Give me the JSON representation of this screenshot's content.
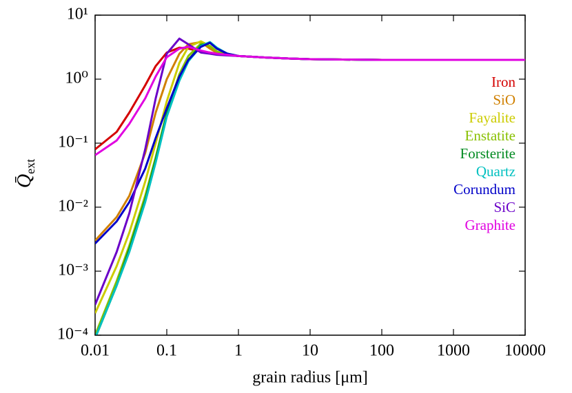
{
  "chart_data": {
    "type": "line",
    "xlabel": "grain radius [μm]",
    "ylabel": "Q̄",
    "ylabel_sub": "ext",
    "xscale": "log",
    "yscale": "log",
    "xlim": [
      0.01,
      10000
    ],
    "ylim": [
      0.0001,
      10
    ],
    "xticks": [
      0.01,
      0.1,
      1,
      10,
      100,
      1000,
      10000
    ],
    "yticks": [
      {
        "value": 0.0001,
        "label": "10⁻⁴"
      },
      {
        "value": 0.001,
        "label": "10⁻³"
      },
      {
        "value": 0.01,
        "label": "10⁻²"
      },
      {
        "value": 0.1,
        "label": "10⁻¹"
      },
      {
        "value": 1,
        "label": "10⁰"
      },
      {
        "value": 10,
        "label": "10¹"
      }
    ],
    "legend": "upper right",
    "x": [
      0.01,
      0.02,
      0.03,
      0.05,
      0.07,
      0.1,
      0.15,
      0.2,
      0.3,
      0.4,
      0.5,
      0.7,
      1,
      2,
      5,
      10,
      100,
      1000,
      10000
    ],
    "series": [
      {
        "name": "Iron",
        "color": "#d40000",
        "values": [
          0.08,
          0.15,
          0.3,
          0.8,
          1.6,
          2.6,
          3.1,
          3.0,
          2.7,
          2.6,
          2.5,
          2.4,
          2.3,
          2.2,
          2.1,
          2.05,
          2.0,
          2.0,
          2.0
        ]
      },
      {
        "name": "SiO",
        "color": "#d08000",
        "values": [
          0.003,
          0.007,
          0.015,
          0.07,
          0.3,
          1.0,
          2.5,
          3.5,
          3.8,
          3.0,
          2.6,
          2.4,
          2.3,
          2.2,
          2.1,
          2.05,
          2.0,
          2.0,
          2.0
        ]
      },
      {
        "name": "Fayalite",
        "color": "#cccc00",
        "values": [
          0.00022,
          0.0012,
          0.004,
          0.025,
          0.1,
          0.45,
          1.8,
          3.2,
          3.9,
          3.3,
          2.7,
          2.4,
          2.3,
          2.2,
          2.1,
          2.05,
          2.0,
          2.0,
          2.0
        ]
      },
      {
        "name": "Enstatite",
        "color": "#88c000",
        "values": [
          0.0001,
          0.0007,
          0.0025,
          0.015,
          0.06,
          0.3,
          1.2,
          2.3,
          3.6,
          3.3,
          2.7,
          2.4,
          2.3,
          2.2,
          2.1,
          2.05,
          2.0,
          2.0,
          2.0
        ]
      },
      {
        "name": "Forsterite",
        "color": "#008a20",
        "values": [
          9e-05,
          0.0006,
          0.0022,
          0.013,
          0.055,
          0.28,
          1.0,
          2.0,
          3.4,
          3.7,
          3.0,
          2.5,
          2.3,
          2.2,
          2.1,
          2.05,
          2.0,
          2.0,
          2.0
        ]
      },
      {
        "name": "Quartz",
        "color": "#00c0c0",
        "values": [
          9e-05,
          0.0006,
          0.002,
          0.012,
          0.05,
          0.26,
          0.95,
          1.9,
          3.3,
          3.8,
          3.1,
          2.5,
          2.3,
          2.2,
          2.1,
          2.05,
          2.0,
          2.0,
          2.0
        ]
      },
      {
        "name": "Corundum",
        "color": "#0000c8",
        "values": [
          0.0027,
          0.006,
          0.012,
          0.04,
          0.12,
          0.35,
          1.1,
          2.0,
          3.2,
          3.7,
          3.0,
          2.5,
          2.3,
          2.2,
          2.1,
          2.05,
          2.0,
          2.0,
          2.0
        ]
      },
      {
        "name": "SiC",
        "color": "#6a00c8",
        "values": [
          0.0003,
          0.002,
          0.008,
          0.08,
          0.5,
          2.5,
          4.3,
          3.5,
          2.6,
          2.5,
          2.4,
          2.35,
          2.3,
          2.2,
          2.1,
          2.05,
          2.0,
          2.0,
          2.0
        ]
      },
      {
        "name": "Graphite",
        "color": "#e000e0",
        "values": [
          0.065,
          0.11,
          0.2,
          0.5,
          1.1,
          2.2,
          3.0,
          3.2,
          2.8,
          2.6,
          2.5,
          2.4,
          2.3,
          2.2,
          2.1,
          2.05,
          2.0,
          2.0,
          2.0
        ]
      }
    ]
  }
}
